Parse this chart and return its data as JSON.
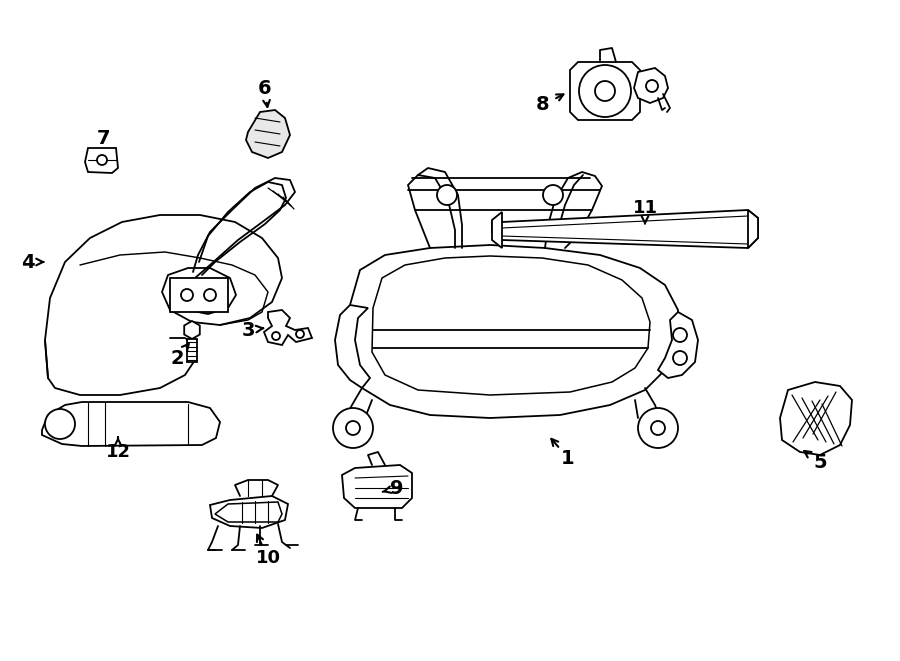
{
  "bg_color": "#ffffff",
  "line_color": "#000000",
  "lw": 1.3
}
